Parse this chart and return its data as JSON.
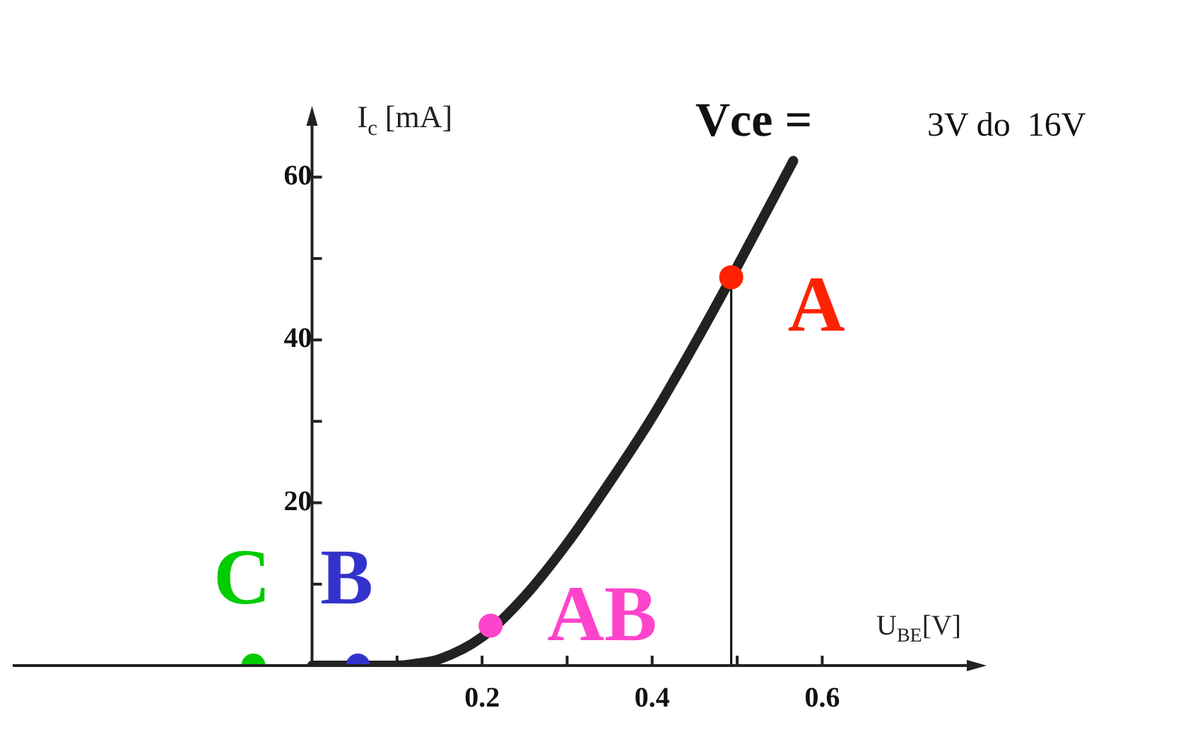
{
  "chart_data": {
    "type": "line",
    "xlabel": "U$_{BE}$[V]",
    "ylabel": "I$_{c}$ [mA]",
    "xlim": [
      -0.352,
      0.78
    ],
    "ylim": [
      0,
      67
    ],
    "xticks": [
      {
        "value": 0.1,
        "label": null
      },
      0.2,
      {
        "value": 0.3,
        "label": null
      },
      0.4,
      {
        "value": 0.5,
        "label": null
      },
      0.6
    ],
    "yticks": [
      {
        "value": 10,
        "label": null
      },
      20,
      {
        "value": 30,
        "label": null
      },
      40,
      {
        "value": 50,
        "label": null
      },
      60
    ],
    "grid": false,
    "legend": false,
    "marker": "none",
    "series": [
      {
        "type": "scatter",
        "marker": "circle",
        "color": "#ff2200",
        "x": [
          0.493
        ],
        "values": [
          47.7
        ]
      },
      {
        "type": "scatter",
        "marker": "circle",
        "color": "#ff44cc",
        "x": [
          0.21
        ],
        "values": [
          4.9
        ]
      },
      {
        "type": "scatter",
        "marker": "circle",
        "color": "#3333cc",
        "x": [
          0.054
        ],
        "values": [
          0
        ]
      },
      {
        "type": "scatter",
        "marker": "circle",
        "color": "#00cc00",
        "x": [
          -0.069
        ],
        "values": [
          0
        ]
      },
      {
        "color": "#222222",
        "x": [
          0,
          0.05,
          0.1,
          0.12,
          0.15,
          0.2,
          0.25,
          0.3,
          0.35,
          0.4,
          0.45,
          0.5,
          0.566
        ],
        "values": [
          0,
          0,
          0,
          0.2,
          0.8,
          3.5,
          8.5,
          15,
          22.5,
          30.5,
          39.5,
          49,
          62
        ]
      },
      {
        "color": "#000000",
        "x": [
          0.493,
          0.493
        ],
        "values": [
          0,
          47.7
        ]
      }
    ],
    "annotations": [
      {
        "text": "A",
        "x": 0.493,
        "y": 47.7
      },
      {
        "text": "AB",
        "x": 0.21,
        "y": 4.9
      },
      {
        "text": "B",
        "x": 0.054,
        "y": 0
      },
      {
        "text": "C",
        "x": -0.069,
        "y": 0
      },
      "Vce =  3V do  16V"
    ]
  }
}
